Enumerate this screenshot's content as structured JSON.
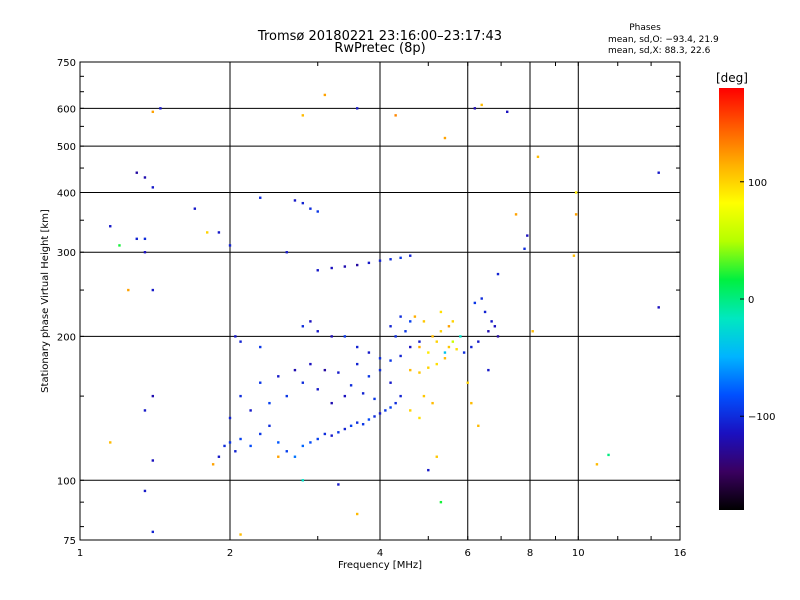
{
  "title_line1": "Tromsø 20180221 23:16:00–23:17:43",
  "title_line2": "RwPretec (8p)",
  "stats": {
    "heading": "Phases",
    "line1": "mean, sd,O: −93.4, 21.9",
    "line2": "mean, sd,X:  88.3, 22.6"
  },
  "colorbar": {
    "label": "[deg]",
    "ticks": [
      "100",
      "0",
      "−100"
    ],
    "tick_values": [
      100,
      0,
      -100
    ],
    "range": [
      -180,
      180
    ],
    "palette": [
      "#000000",
      "#3a0060",
      "#1a10c0",
      "#0050ff",
      "#00b4ff",
      "#00e8c0",
      "#00f040",
      "#b4ff00",
      "#ffff00",
      "#ffb000",
      "#ff5a00",
      "#ff0000"
    ]
  },
  "chart_data": {
    "type": "scatter",
    "title": "Tromsø 20180221 23:16:00–23:17:43",
    "subtitle": "RwPretec (8p)",
    "xlabel": "Frequency [MHz]",
    "ylabel": "Stationary phase Virtual Height [km]",
    "xscale": "log",
    "yscale": "log",
    "xlim": [
      1,
      16
    ],
    "ylim": [
      75,
      750
    ],
    "xticks": [
      "1",
      "2",
      "4",
      "6",
      "8",
      "10",
      "16"
    ],
    "xtick_values": [
      1,
      2,
      4,
      6,
      8,
      10,
      16
    ],
    "yticks": [
      "75",
      "100",
      "200",
      "300",
      "400",
      "500",
      "600",
      "750"
    ],
    "ytick_values": [
      75,
      100,
      200,
      300,
      400,
      500,
      600,
      750
    ],
    "x_gridlines": [
      2,
      4,
      6,
      8,
      10
    ],
    "y_gridlines": [
      100,
      200,
      300,
      400,
      500,
      600
    ],
    "grid": true,
    "color_scale": "phase [deg]",
    "series": [
      {
        "points": [
          [
            1.9,
            112,
            -110
          ],
          [
            1.95,
            118,
            -100
          ],
          [
            2.0,
            120,
            -95
          ],
          [
            2.05,
            115,
            -105
          ],
          [
            2.1,
            122,
            -90
          ],
          [
            2.2,
            118,
            -85
          ],
          [
            2.3,
            125,
            -95
          ],
          [
            2.4,
            130,
            -100
          ],
          [
            2.5,
            120,
            -80
          ],
          [
            2.6,
            115,
            -90
          ],
          [
            2.7,
            112,
            -70
          ],
          [
            2.8,
            118,
            -75
          ],
          [
            2.9,
            120,
            -85
          ],
          [
            3.0,
            122,
            -90
          ],
          [
            3.1,
            125,
            -100
          ],
          [
            3.2,
            124,
            -110
          ],
          [
            3.3,
            126,
            -95
          ],
          [
            3.4,
            128,
            -105
          ],
          [
            3.5,
            130,
            -90
          ],
          [
            3.6,
            132,
            -100
          ],
          [
            3.7,
            131,
            -95
          ],
          [
            3.8,
            134,
            -85
          ],
          [
            3.9,
            136,
            -100
          ],
          [
            4.0,
            138,
            -110
          ],
          [
            4.1,
            140,
            -95
          ],
          [
            4.2,
            142,
            -90
          ],
          [
            4.3,
            145,
            -100
          ],
          [
            4.4,
            150,
            -105
          ],
          [
            4.2,
            160,
            -110
          ],
          [
            4.0,
            170,
            -100
          ],
          [
            3.8,
            165,
            -95
          ],
          [
            3.6,
            175,
            -105
          ],
          [
            3.4,
            150,
            -115
          ],
          [
            3.2,
            145,
            -120
          ],
          [
            3.0,
            155,
            -110
          ],
          [
            2.8,
            160,
            -100
          ],
          [
            2.6,
            150,
            -95
          ],
          [
            2.4,
            145,
            -90
          ],
          [
            2.2,
            140,
            -110
          ],
          [
            2.0,
            135,
            -105
          ],
          [
            2.1,
            150,
            -100
          ],
          [
            2.3,
            160,
            -95
          ],
          [
            2.5,
            165,
            -110
          ],
          [
            2.7,
            170,
            -120
          ],
          [
            2.9,
            175,
            -115
          ],
          [
            3.1,
            170,
            -125
          ],
          [
            3.3,
            168,
            -110
          ],
          [
            3.5,
            158,
            -100
          ],
          [
            3.7,
            152,
            -105
          ],
          [
            3.9,
            148,
            -95
          ],
          [
            2.05,
            200,
            -110
          ],
          [
            2.1,
            195,
            -105
          ],
          [
            2.3,
            190,
            -95
          ],
          [
            3.0,
            205,
            -110
          ],
          [
            3.2,
            200,
            -120
          ],
          [
            2.9,
            215,
            -115
          ],
          [
            2.8,
            210,
            -100
          ],
          [
            3.4,
            200,
            -95
          ],
          [
            3.6,
            190,
            -105
          ],
          [
            3.8,
            185,
            -110
          ],
          [
            4.0,
            180,
            -100
          ],
          [
            4.2,
            178,
            -95
          ],
          [
            4.4,
            182,
            -105
          ],
          [
            4.6,
            190,
            -115
          ],
          [
            4.8,
            195,
            -110
          ],
          [
            4.3,
            200,
            -100
          ],
          [
            4.5,
            205,
            -95
          ],
          [
            4.2,
            210,
            -105
          ],
          [
            4.6,
            215,
            -90
          ],
          [
            4.4,
            220,
            -100
          ],
          [
            4.6,
            170,
            110
          ],
          [
            4.8,
            168,
            105
          ],
          [
            5.0,
            172,
            100
          ],
          [
            5.2,
            175,
            95
          ],
          [
            5.4,
            180,
            110
          ],
          [
            5.0,
            185,
            90
          ],
          [
            4.8,
            190,
            115
          ],
          [
            5.2,
            195,
            100
          ],
          [
            5.5,
            190,
            105
          ],
          [
            5.7,
            188,
            95
          ],
          [
            5.1,
            200,
            110
          ],
          [
            5.3,
            205,
            100
          ],
          [
            5.5,
            210,
            120
          ],
          [
            4.9,
            215,
            105
          ],
          [
            4.7,
            220,
            115
          ],
          [
            5.6,
            215,
            100
          ],
          [
            5.3,
            225,
            95
          ],
          [
            5.8,
            200,
            -20
          ],
          [
            5.6,
            195,
            60
          ],
          [
            5.4,
            185,
            -40
          ],
          [
            4.9,
            150,
            105
          ],
          [
            5.1,
            145,
            110
          ],
          [
            4.6,
            140,
            100
          ],
          [
            4.8,
            135,
            95
          ],
          [
            5.9,
            185,
            -100
          ],
          [
            6.1,
            190,
            -105
          ],
          [
            6.3,
            195,
            -110
          ],
          [
            6.6,
            205,
            -120
          ],
          [
            6.8,
            210,
            -115
          ],
          [
            6.9,
            200,
            -125
          ],
          [
            6.7,
            215,
            -110
          ],
          [
            6.5,
            225,
            -105
          ],
          [
            6.4,
            240,
            -100
          ],
          [
            6.2,
            235,
            -95
          ],
          [
            3.0,
            275,
            -110
          ],
          [
            3.2,
            278,
            -115
          ],
          [
            3.4,
            280,
            -120
          ],
          [
            3.6,
            282,
            -125
          ],
          [
            3.8,
            285,
            -110
          ],
          [
            4.0,
            288,
            -105
          ],
          [
            4.2,
            290,
            -100
          ],
          [
            4.4,
            292,
            -95
          ],
          [
            4.6,
            295,
            -105
          ],
          [
            2.7,
            385,
            -110
          ],
          [
            2.8,
            380,
            -105
          ],
          [
            2.9,
            370,
            -100
          ],
          [
            3.0,
            365,
            -95
          ],
          [
            1.35,
            430,
            -120
          ],
          [
            1.4,
            410,
            -110
          ],
          [
            1.35,
            300,
            -115
          ],
          [
            1.4,
            250,
            -110
          ],
          [
            1.3,
            440,
            -125
          ],
          [
            1.45,
            600,
            -110
          ],
          [
            1.4,
            590,
            120
          ],
          [
            1.15,
            340,
            -110
          ],
          [
            1.2,
            310,
            20
          ],
          [
            1.35,
            320,
            -100
          ],
          [
            1.3,
            320,
            -105
          ],
          [
            1.4,
            150,
            -120
          ],
          [
            1.35,
            140,
            -110
          ],
          [
            1.4,
            110,
            -115
          ],
          [
            1.35,
            95,
            -110
          ],
          [
            1.4,
            78,
            -105
          ],
          [
            1.15,
            120,
            110
          ],
          [
            1.25,
            250,
            120
          ],
          [
            1.7,
            370,
            -110
          ],
          [
            1.8,
            330,
            100
          ],
          [
            1.9,
            330,
            -110
          ],
          [
            2.0,
            310,
            -105
          ],
          [
            2.3,
            390,
            -100
          ],
          [
            2.6,
            300,
            -110
          ],
          [
            2.8,
            580,
            110
          ],
          [
            3.1,
            640,
            120
          ],
          [
            3.6,
            600,
            -110
          ],
          [
            4.3,
            580,
            130
          ],
          [
            5.4,
            520,
            120
          ],
          [
            6.2,
            600,
            -120
          ],
          [
            6.4,
            610,
            110
          ],
          [
            7.2,
            590,
            -115
          ],
          [
            8.3,
            475,
            110
          ],
          [
            7.5,
            360,
            120
          ],
          [
            7.8,
            305,
            -100
          ],
          [
            7.9,
            325,
            -115
          ],
          [
            8.1,
            205,
            110
          ],
          [
            9.8,
            295,
            110
          ],
          [
            9.9,
            360,
            120
          ],
          [
            9.9,
            400,
            90
          ],
          [
            10.9,
            108,
            110
          ],
          [
            11.5,
            113,
            0
          ],
          [
            14.5,
            440,
            -110
          ],
          [
            14.5,
            230,
            -115
          ],
          [
            5.3,
            90,
            20
          ],
          [
            5.0,
            105,
            -110
          ],
          [
            5.2,
            112,
            105
          ],
          [
            3.3,
            98,
            -110
          ],
          [
            3.6,
            85,
            110
          ],
          [
            2.8,
            100,
            -20
          ],
          [
            2.5,
            112,
            120
          ],
          [
            1.85,
            108,
            120
          ],
          [
            2.1,
            77,
            110
          ],
          [
            6.3,
            130,
            110
          ],
          [
            6.1,
            145,
            110
          ],
          [
            6.0,
            160,
            100
          ],
          [
            6.6,
            170,
            -110
          ],
          [
            6.9,
            270,
            -105
          ]
        ]
      }
    ]
  }
}
